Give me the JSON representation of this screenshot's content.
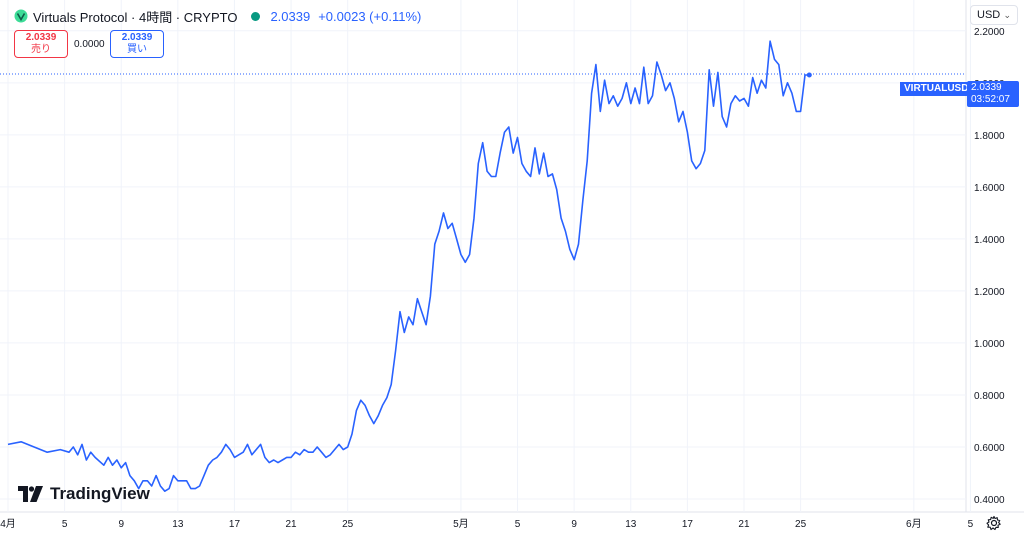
{
  "header": {
    "title": "Virtuals Protocol · 4時間 · CRYPTO",
    "price": "2.0339",
    "change": "+0.0023 (+0.11%)",
    "status_color": "#089981"
  },
  "quote": {
    "sell_value": "2.0339",
    "sell_label": "売り",
    "spread": "0.0000",
    "buy_value": "2.0339",
    "buy_label": "買い"
  },
  "currency": {
    "label": "USD"
  },
  "badge": {
    "symbol": "VIRTUALUSD",
    "price": "2.0339",
    "countdown": "03:52:07"
  },
  "brand": {
    "name": "TradingView"
  },
  "colors": {
    "line": "#2962ff",
    "grid": "#f0f3fa",
    "accent": "#2962ff",
    "down": "#f23645"
  },
  "chart_data": {
    "type": "line",
    "series": [
      {
        "values": [
          [
            0,
            0.61
          ],
          [
            3,
            0.62
          ],
          [
            6,
            0.6
          ],
          [
            9,
            0.58
          ],
          [
            12,
            0.59
          ],
          [
            14,
            0.58
          ],
          [
            15,
            0.6
          ],
          [
            16,
            0.57
          ],
          [
            17,
            0.61
          ],
          [
            18,
            0.55
          ],
          [
            19,
            0.58
          ],
          [
            20,
            0.56
          ],
          [
            22,
            0.53
          ],
          [
            23,
            0.56
          ],
          [
            24,
            0.53
          ],
          [
            25,
            0.55
          ],
          [
            26,
            0.52
          ],
          [
            27,
            0.54
          ],
          [
            28,
            0.49
          ],
          [
            29,
            0.47
          ],
          [
            30,
            0.44
          ],
          [
            31,
            0.47
          ],
          [
            32,
            0.47
          ],
          [
            33,
            0.45
          ],
          [
            34,
            0.49
          ],
          [
            35,
            0.45
          ],
          [
            36,
            0.43
          ],
          [
            37,
            0.44
          ],
          [
            38,
            0.49
          ],
          [
            39,
            0.47
          ],
          [
            40,
            0.47
          ],
          [
            41,
            0.47
          ],
          [
            42,
            0.44
          ],
          [
            43,
            0.44
          ],
          [
            44,
            0.45
          ],
          [
            45,
            0.49
          ],
          [
            46,
            0.53
          ],
          [
            47,
            0.55
          ],
          [
            48,
            0.56
          ],
          [
            49,
            0.58
          ],
          [
            50,
            0.61
          ],
          [
            51,
            0.59
          ],
          [
            52,
            0.56
          ],
          [
            53,
            0.57
          ],
          [
            54,
            0.58
          ],
          [
            55,
            0.61
          ],
          [
            56,
            0.57
          ],
          [
            57,
            0.59
          ],
          [
            58,
            0.61
          ],
          [
            59,
            0.56
          ],
          [
            60,
            0.54
          ],
          [
            61,
            0.55
          ],
          [
            62,
            0.54
          ],
          [
            63,
            0.55
          ],
          [
            64,
            0.56
          ],
          [
            65,
            0.56
          ],
          [
            66,
            0.58
          ],
          [
            67,
            0.57
          ],
          [
            68,
            0.59
          ],
          [
            69,
            0.58
          ],
          [
            70,
            0.58
          ],
          [
            71,
            0.6
          ],
          [
            72,
            0.58
          ],
          [
            73,
            0.56
          ],
          [
            74,
            0.57
          ],
          [
            75,
            0.59
          ],
          [
            76,
            0.61
          ],
          [
            77,
            0.59
          ],
          [
            78,
            0.6
          ],
          [
            79,
            0.65
          ],
          [
            80,
            0.74
          ],
          [
            81,
            0.78
          ],
          [
            82,
            0.76
          ],
          [
            83,
            0.72
          ],
          [
            84,
            0.69
          ],
          [
            85,
            0.72
          ],
          [
            86,
            0.76
          ],
          [
            87,
            0.79
          ],
          [
            88,
            0.84
          ],
          [
            89,
            0.97
          ],
          [
            90,
            1.12
          ],
          [
            91,
            1.04
          ],
          [
            92,
            1.1
          ],
          [
            93,
            1.07
          ],
          [
            94,
            1.17
          ],
          [
            95,
            1.12
          ],
          [
            96,
            1.07
          ],
          [
            97,
            1.18
          ],
          [
            98,
            1.38
          ],
          [
            99,
            1.43
          ],
          [
            100,
            1.5
          ],
          [
            101,
            1.44
          ],
          [
            102,
            1.46
          ],
          [
            103,
            1.4
          ],
          [
            104,
            1.34
          ],
          [
            105,
            1.31
          ],
          [
            106,
            1.34
          ],
          [
            107,
            1.48
          ],
          [
            108,
            1.69
          ],
          [
            109,
            1.77
          ],
          [
            110,
            1.66
          ],
          [
            111,
            1.64
          ],
          [
            112,
            1.64
          ],
          [
            113,
            1.73
          ],
          [
            114,
            1.81
          ],
          [
            115,
            1.83
          ],
          [
            116,
            1.73
          ],
          [
            117,
            1.79
          ],
          [
            118,
            1.69
          ],
          [
            119,
            1.66
          ],
          [
            120,
            1.64
          ],
          [
            121,
            1.75
          ],
          [
            122,
            1.65
          ],
          [
            123,
            1.73
          ],
          [
            124,
            1.64
          ],
          [
            125,
            1.65
          ],
          [
            126,
            1.59
          ],
          [
            127,
            1.48
          ],
          [
            128,
            1.43
          ],
          [
            129,
            1.36
          ],
          [
            130,
            1.32
          ],
          [
            131,
            1.38
          ],
          [
            132,
            1.55
          ],
          [
            133,
            1.7
          ],
          [
            134,
            1.96
          ],
          [
            135,
            2.07
          ],
          [
            136,
            1.89
          ],
          [
            137,
            2.01
          ],
          [
            138,
            1.92
          ],
          [
            139,
            1.95
          ],
          [
            140,
            1.91
          ],
          [
            141,
            1.94
          ],
          [
            142,
            2.0
          ],
          [
            143,
            1.92
          ],
          [
            144,
            1.98
          ],
          [
            145,
            1.92
          ],
          [
            146,
            2.06
          ],
          [
            147,
            1.92
          ],
          [
            148,
            1.95
          ],
          [
            149,
            2.08
          ],
          [
            150,
            2.03
          ],
          [
            151,
            1.97
          ],
          [
            152,
            2.0
          ],
          [
            153,
            1.94
          ],
          [
            154,
            1.85
          ],
          [
            155,
            1.89
          ],
          [
            156,
            1.81
          ],
          [
            157,
            1.7
          ],
          [
            158,
            1.67
          ],
          [
            159,
            1.69
          ],
          [
            160,
            1.74
          ],
          [
            161,
            2.05
          ],
          [
            162,
            1.91
          ],
          [
            163,
            2.04
          ],
          [
            164,
            1.87
          ],
          [
            165,
            1.83
          ],
          [
            166,
            1.92
          ],
          [
            167,
            1.95
          ],
          [
            168,
            1.93
          ],
          [
            169,
            1.94
          ],
          [
            170,
            1.91
          ],
          [
            171,
            2.02
          ],
          [
            172,
            1.96
          ],
          [
            173,
            2.01
          ],
          [
            174,
            1.98
          ],
          [
            175,
            2.16
          ],
          [
            176,
            2.09
          ],
          [
            177,
            2.07
          ],
          [
            178,
            1.95
          ],
          [
            179,
            2.0
          ],
          [
            180,
            1.96
          ],
          [
            181,
            1.89
          ],
          [
            182,
            1.89
          ],
          [
            183,
            2.03
          ],
          [
            184,
            2.03
          ]
        ]
      }
    ],
    "x_ticks": [
      {
        "x": 0,
        "label": "4月"
      },
      {
        "x": 13,
        "label": "5"
      },
      {
        "x": 26,
        "label": "9"
      },
      {
        "x": 39,
        "label": "13"
      },
      {
        "x": 52,
        "label": "17"
      },
      {
        "x": 65,
        "label": "21"
      },
      {
        "x": 78,
        "label": "25"
      },
      {
        "x": 104,
        "label": "5月"
      },
      {
        "x": 117,
        "label": "5"
      },
      {
        "x": 130,
        "label": "9"
      },
      {
        "x": 143,
        "label": "13"
      },
      {
        "x": 156,
        "label": "17"
      },
      {
        "x": 169,
        "label": "21"
      },
      {
        "x": 182,
        "label": "25"
      },
      {
        "x": 208,
        "label": "6月"
      },
      {
        "x": 221,
        "label": "5"
      }
    ],
    "y_ticks": [
      0.4,
      0.6,
      0.8,
      1.0,
      1.2,
      1.4,
      1.6,
      1.8,
      2.0,
      2.2
    ],
    "y_tick_labels": [
      "0.4000",
      "0.6000",
      "0.8000",
      "1.0000",
      "1.2000",
      "1.4000",
      "1.6000",
      "1.8000",
      "2.0000",
      "2.2000"
    ],
    "last_price": 2.0339,
    "ylim": [
      0.35,
      2.28
    ],
    "xlim": [
      -2,
      217
    ],
    "grid": true
  }
}
